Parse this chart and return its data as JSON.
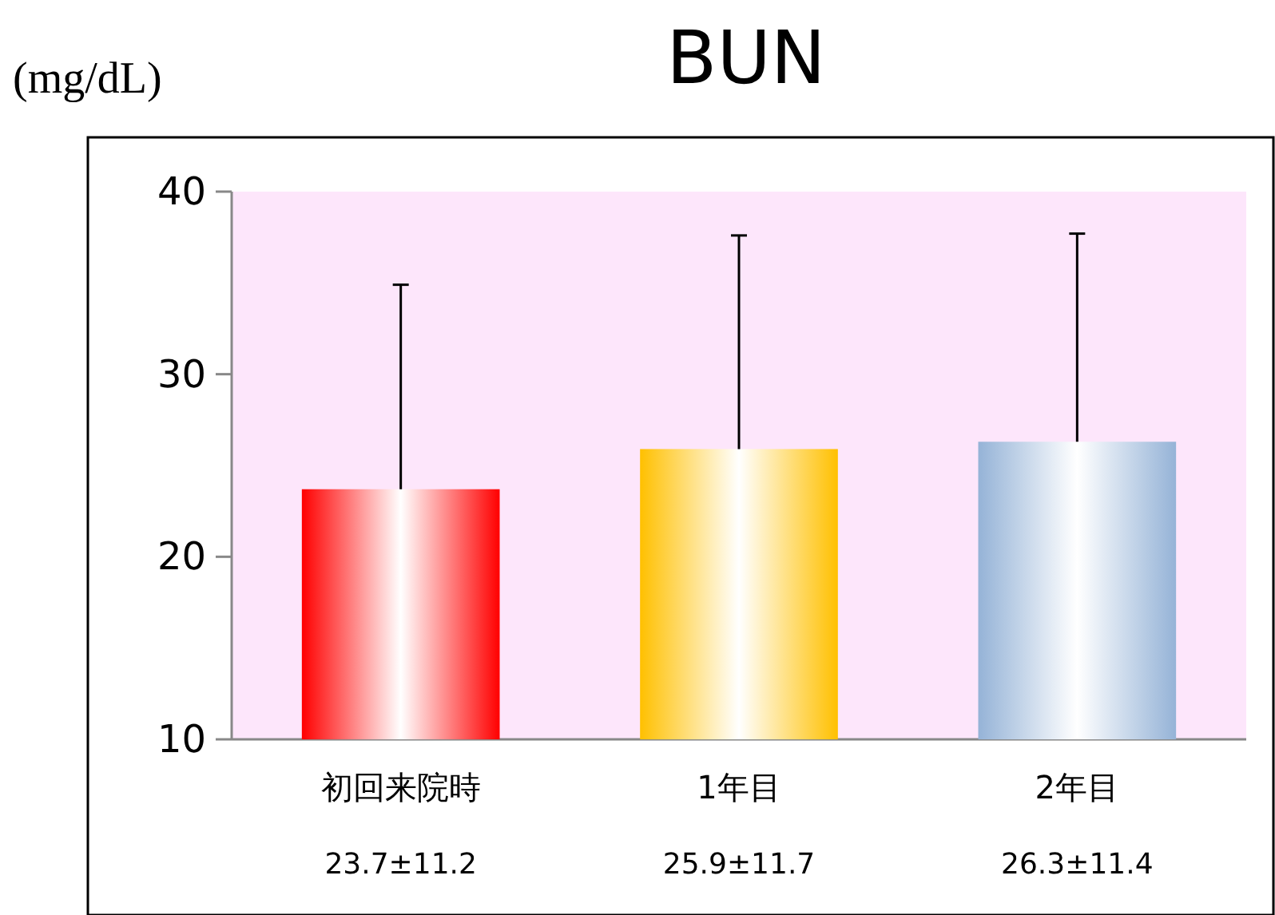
{
  "chart_data": {
    "type": "bar",
    "title": "BUN",
    "ylabel": "(mg/dL)",
    "categories": [
      "初回来院時",
      "1年目",
      "2年目"
    ],
    "values": [
      23.7,
      25.9,
      26.3
    ],
    "colors": [
      "#ff0000",
      "#ffc000",
      "#95b3d7"
    ],
    "errors": [
      [
        23.7,
        34.9
      ],
      [
        25.9,
        37.6
      ],
      [
        26.3,
        37.7
      ]
    ],
    "value_labels": [
      "23.7±11.2",
      "25.9±11.7",
      "26.3±11.4"
    ],
    "ylim": [
      10,
      40
    ],
    "yticks": [
      10,
      20,
      30,
      40
    ],
    "grid": false
  }
}
